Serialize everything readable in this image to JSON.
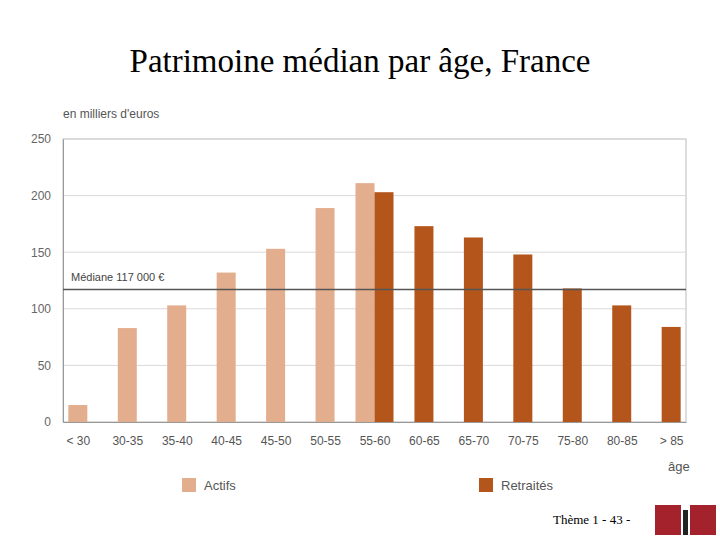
{
  "chart_data": {
    "type": "bar",
    "title": "Patrimoine médian par âge, France",
    "y_label": "en milliers d'euros",
    "x_label": "âge",
    "categories": [
      "< 30",
      "30-35",
      "35-40",
      "40-45",
      "45-50",
      "50-55",
      "55-60",
      "60-65",
      "65-70",
      "70-75",
      "75-80",
      "80-85",
      "> 85"
    ],
    "series": [
      {
        "name": "Actifs",
        "color": "#e3ae8d",
        "values": [
          15,
          83,
          103,
          132,
          153,
          189,
          211,
          null,
          null,
          null,
          null,
          null,
          null
        ]
      },
      {
        "name": "Retraités",
        "color": "#b4561b",
        "values": [
          null,
          null,
          null,
          null,
          null,
          null,
          203,
          173,
          163,
          148,
          118,
          103,
          84
        ]
      }
    ],
    "annotations": [
      {
        "value": 117,
        "label": "Médiane 117 000 €"
      }
    ],
    "ylim": [
      0,
      250
    ],
    "yticks": [
      0,
      50,
      100,
      150,
      200,
      250
    ],
    "grid": true,
    "legend": "bottom"
  },
  "footer": "Thème 1 - 43 -"
}
